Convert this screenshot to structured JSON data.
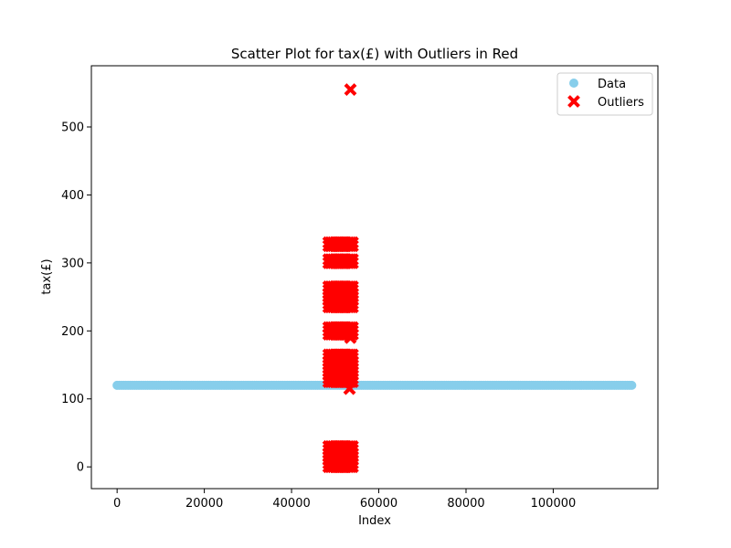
{
  "chart_data": {
    "type": "scatter",
    "title": "Scatter Plot for tax(£) with Outliers in Red",
    "xlabel": "Index",
    "ylabel": "tax(£)",
    "xlim": [
      -5900,
      124000
    ],
    "ylim": [
      -32,
      590
    ],
    "xticks": [
      0,
      20000,
      40000,
      60000,
      80000,
      100000
    ],
    "xtick_labels": [
      "0",
      "20000",
      "40000",
      "60000",
      "80000",
      "100000"
    ],
    "yticks": [
      0,
      100,
      200,
      300,
      400,
      500
    ],
    "ytick_labels": [
      "0",
      "100",
      "200",
      "300",
      "400",
      "500"
    ],
    "grid": false,
    "legend": {
      "position": "top-right",
      "entries": [
        "Data",
        "Outliers"
      ]
    },
    "colors": {
      "data": "#87ceeb",
      "outliers": "#ff0000"
    },
    "series": [
      {
        "name": "Data",
        "marker": "circle",
        "value": 120,
        "x_range": [
          0,
          118000
        ]
      },
      {
        "name": "Outliers",
        "marker": "x",
        "x_range": [
          48500,
          54000
        ],
        "y_values": [
          0,
          5,
          10,
          15,
          20,
          25,
          30,
          125,
          130,
          135,
          140,
          145,
          150,
          155,
          160,
          165,
          195,
          200,
          205,
          235,
          240,
          245,
          250,
          255,
          260,
          265,
          300,
          305,
          325,
          330
        ],
        "extra_points": [
          {
            "x": 53500,
            "y": 555
          },
          {
            "x": 53500,
            "y": 190
          },
          {
            "x": 53300,
            "y": 115
          },
          {
            "x": 49000,
            "y": 325
          },
          {
            "x": 49000,
            "y": 300
          }
        ]
      }
    ]
  }
}
